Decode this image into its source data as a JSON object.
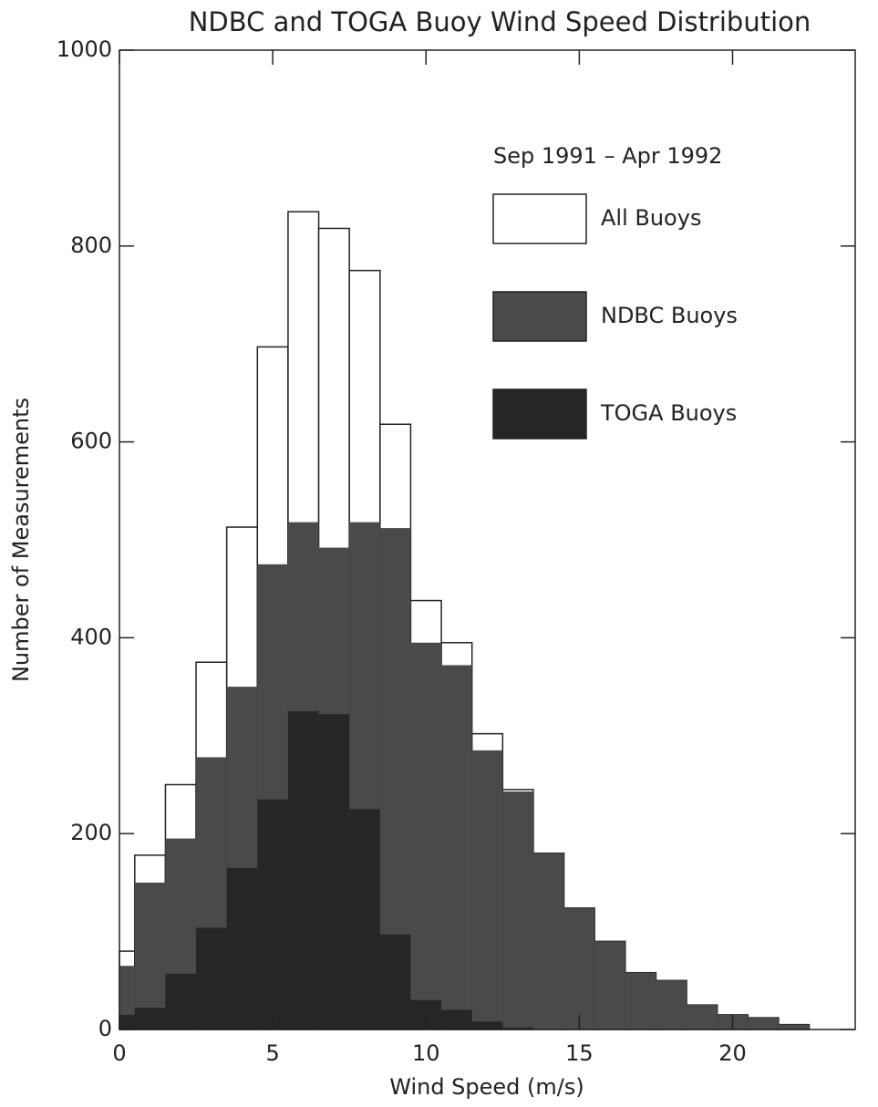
{
  "chart_data": {
    "type": "histogram",
    "title": "NDBC and TOGA Buoy Wind Speed Distribution",
    "xlabel": "Wind Speed (m/s)",
    "ylabel": "Number of Measurements",
    "legend_title": "Sep 1991 – Apr 1992",
    "bins": [
      0,
      0.5,
      1.5,
      2.5,
      3.5,
      4.5,
      5.5,
      6.5,
      7.5,
      8.5,
      9.5,
      10.5,
      11.5,
      12.5,
      13.5,
      14.5,
      15.5,
      16.5,
      17.5,
      18.5,
      19.5,
      20.5,
      21.5,
      22.5
    ],
    "series": [
      {
        "name": "All Buoys",
        "color": "#ffffff",
        "values": [
          80,
          178,
          250,
          375,
          513,
          697,
          835,
          818,
          775,
          618,
          438,
          395,
          302,
          245,
          180,
          124,
          90,
          58,
          50,
          25,
          15,
          12,
          5
        ]
      },
      {
        "name": "NDBC Buoys",
        "color": "#4a4a4a",
        "values": [
          65,
          150,
          195,
          278,
          350,
          475,
          518,
          492,
          518,
          512,
          395,
          372,
          285,
          243,
          180,
          124,
          90,
          58,
          50,
          25,
          15,
          12,
          5
        ]
      },
      {
        "name": "TOGA Buoys",
        "color": "#262626",
        "values": [
          15,
          22,
          57,
          104,
          165,
          235,
          325,
          322,
          225,
          97,
          30,
          20,
          8,
          2,
          0,
          0,
          0,
          0,
          0,
          0,
          0,
          0,
          0
        ]
      }
    ],
    "xlim": [
      0,
      24
    ],
    "xticks": [
      0,
      5,
      10,
      15,
      20
    ],
    "ylim": [
      0,
      1000
    ],
    "yticks": [
      0,
      200,
      400,
      600,
      800,
      1000
    ],
    "grid": false,
    "legend": "upper right"
  }
}
